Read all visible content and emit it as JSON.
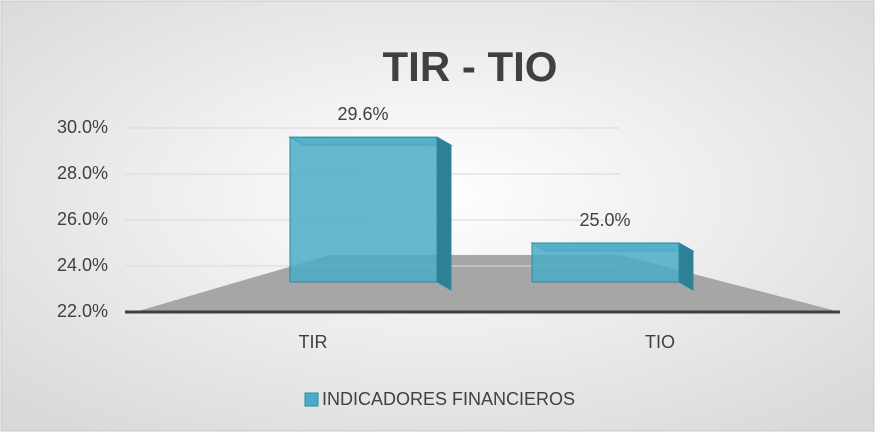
{
  "chart_data": {
    "type": "bar3d",
    "title": "TIR - TIO",
    "categories": [
      "TIR",
      "TIO"
    ],
    "series": [
      {
        "name": "INDICADORES FINANCIEROS",
        "color": "#4bacc6",
        "values": [
          29.6,
          25.0
        ],
        "value_labels": [
          "29.6%",
          "25.0%"
        ]
      }
    ],
    "ylim": [
      22,
      30
    ],
    "yticks": [
      {
        "value": 22,
        "label": "22.0%"
      },
      {
        "value": 24,
        "label": "24.0%"
      },
      {
        "value": 26,
        "label": "26.0%"
      },
      {
        "value": 28,
        "label": "28.0%"
      },
      {
        "value": 30,
        "label": "30.0%"
      }
    ],
    "grid": true,
    "legend": "bottom"
  }
}
